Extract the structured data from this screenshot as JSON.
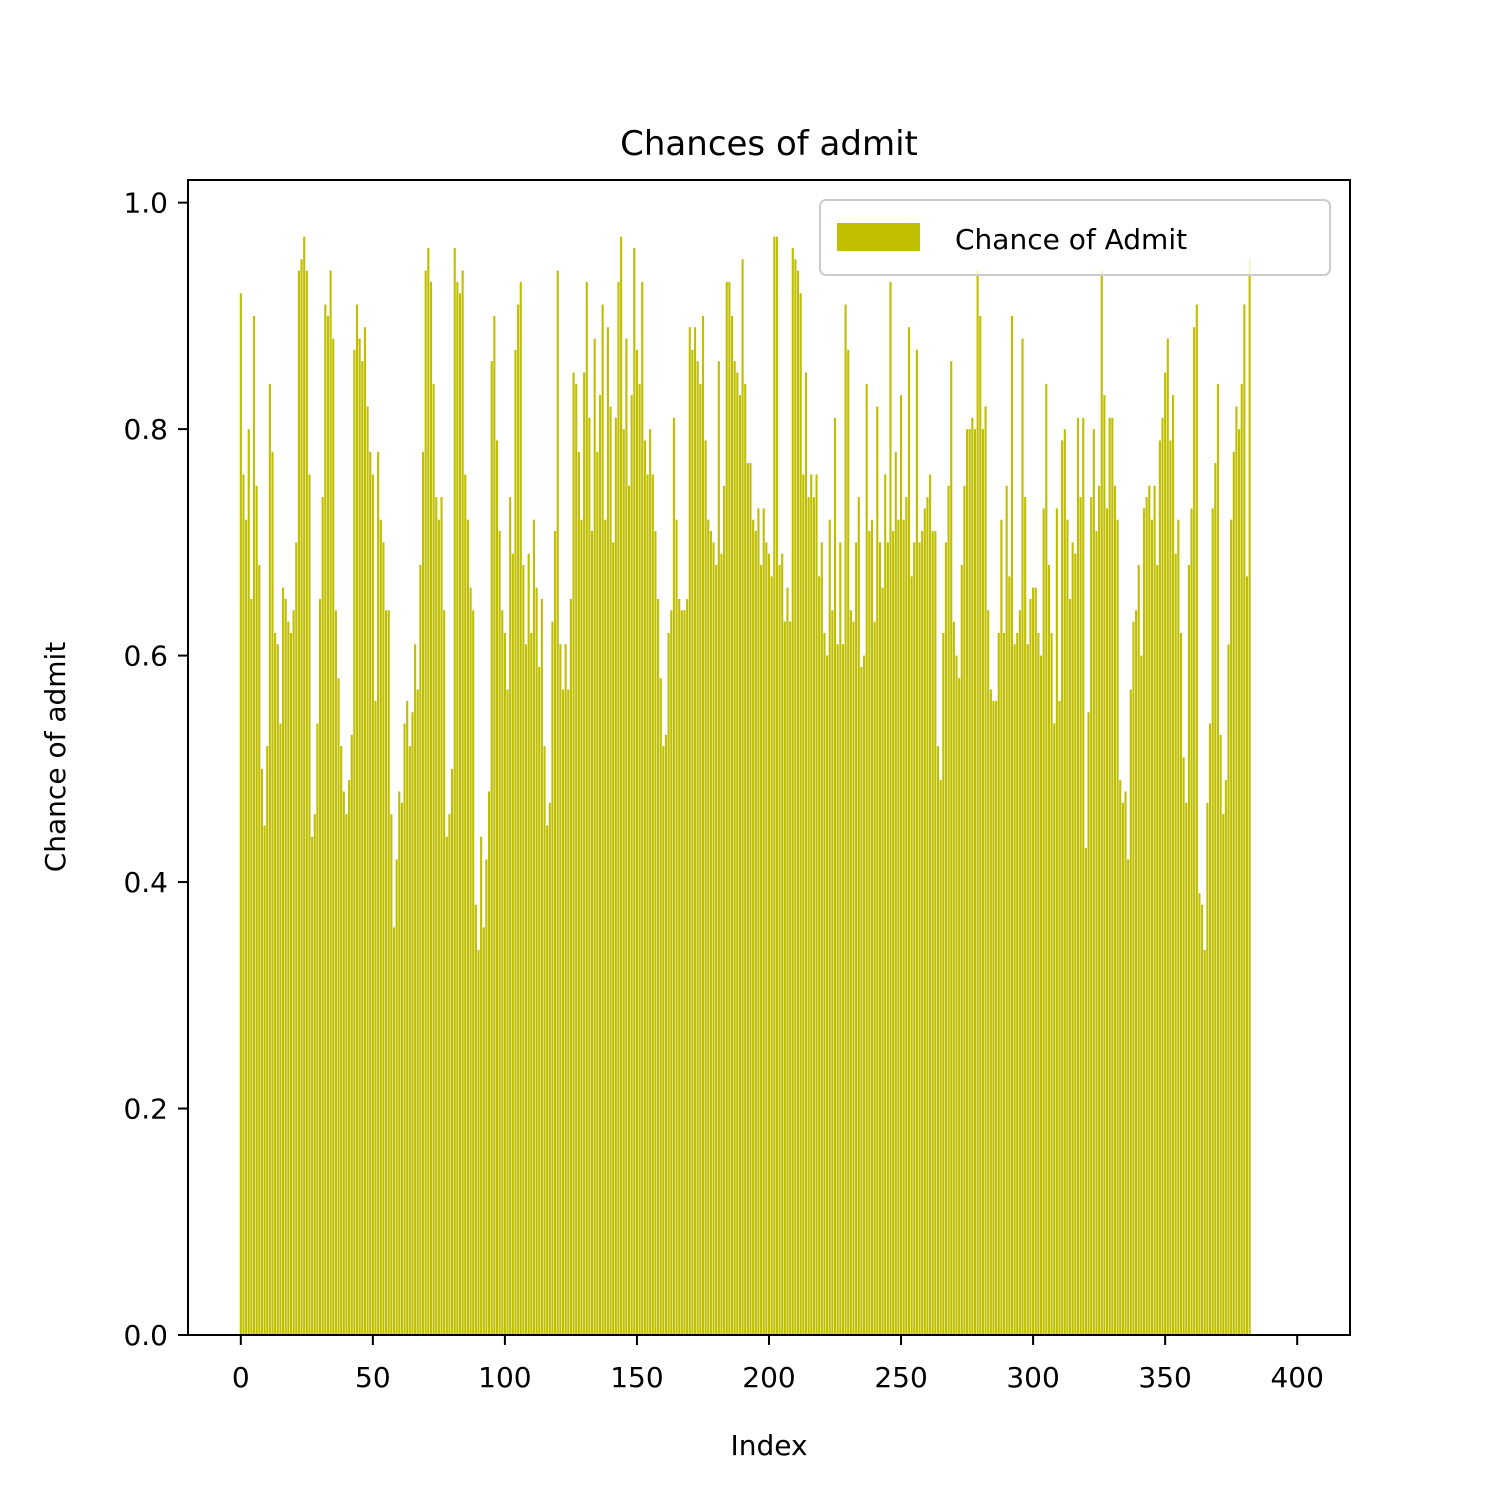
{
  "chart_data": {
    "type": "bar",
    "title": "Chances of admit",
    "xlabel": "Index",
    "ylabel": "Chance of admit",
    "xlim": [
      -20,
      420
    ],
    "ylim": [
      0,
      1.02
    ],
    "xticks": [
      0,
      50,
      100,
      150,
      200,
      250,
      300,
      350,
      400
    ],
    "xtick_labels": [
      "0",
      "50",
      "100",
      "150",
      "200",
      "250",
      "300",
      "350",
      "400"
    ],
    "yticks": [
      0.0,
      0.2,
      0.4,
      0.6,
      0.8,
      1.0
    ],
    "ytick_labels": [
      "0.0",
      "0.2",
      "0.4",
      "0.6",
      "0.8",
      "1.0"
    ],
    "grid": false,
    "legend_position": "top-right",
    "series": [
      {
        "name": "Chance of Admit",
        "color": "#bfbf00",
        "x_start": 0,
        "values": [
          0.92,
          0.76,
          0.72,
          0.8,
          0.65,
          0.9,
          0.75,
          0.68,
          0.5,
          0.45,
          0.52,
          0.84,
          0.78,
          0.62,
          0.61,
          0.54,
          0.66,
          0.65,
          0.63,
          0.62,
          0.64,
          0.7,
          0.94,
          0.95,
          0.97,
          0.94,
          0.76,
          0.44,
          0.46,
          0.54,
          0.65,
          0.74,
          0.91,
          0.9,
          0.94,
          0.88,
          0.64,
          0.58,
          0.52,
          0.48,
          0.46,
          0.49,
          0.53,
          0.87,
          0.91,
          0.88,
          0.86,
          0.89,
          0.82,
          0.78,
          0.76,
          0.56,
          0.78,
          0.72,
          0.7,
          0.64,
          0.64,
          0.46,
          0.36,
          0.42,
          0.48,
          0.47,
          0.54,
          0.56,
          0.52,
          0.55,
          0.61,
          0.57,
          0.68,
          0.78,
          0.94,
          0.96,
          0.93,
          0.84,
          0.74,
          0.72,
          0.74,
          0.64,
          0.44,
          0.46,
          0.5,
          0.96,
          0.93,
          0.92,
          0.94,
          0.76,
          0.72,
          0.66,
          0.64,
          0.38,
          0.34,
          0.44,
          0.36,
          0.42,
          0.48,
          0.86,
          0.9,
          0.79,
          0.71,
          0.64,
          0.62,
          0.57,
          0.74,
          0.69,
          0.87,
          0.91,
          0.93,
          0.68,
          0.61,
          0.69,
          0.62,
          0.72,
          0.66,
          0.59,
          0.65,
          0.52,
          0.45,
          0.47,
          0.63,
          0.71,
          0.94,
          0.61,
          0.57,
          0.61,
          0.57,
          0.65,
          0.85,
          0.84,
          0.78,
          0.72,
          0.85,
          0.93,
          0.81,
          0.71,
          0.88,
          0.78,
          0.83,
          0.91,
          0.72,
          0.89,
          0.82,
          0.7,
          0.81,
          0.93,
          0.97,
          0.8,
          0.88,
          0.75,
          0.83,
          0.96,
          0.87,
          0.84,
          0.93,
          0.79,
          0.76,
          0.8,
          0.76,
          0.71,
          0.65,
          0.58,
          0.52,
          0.53,
          0.62,
          0.64,
          0.81,
          0.72,
          0.65,
          0.64,
          0.64,
          0.65,
          0.89,
          0.87,
          0.89,
          0.86,
          0.84,
          0.9,
          0.79,
          0.72,
          0.71,
          0.7,
          0.68,
          0.86,
          0.69,
          0.75,
          0.93,
          0.93,
          0.9,
          0.86,
          0.85,
          0.83,
          0.95,
          0.84,
          0.77,
          0.77,
          0.72,
          0.71,
          0.73,
          0.68,
          0.73,
          0.7,
          0.69,
          0.67,
          0.97,
          0.97,
          0.68,
          0.69,
          0.63,
          0.66,
          0.63,
          0.96,
          0.95,
          0.94,
          0.92,
          0.76,
          0.85,
          0.74,
          0.76,
          0.74,
          0.76,
          0.67,
          0.7,
          0.62,
          0.6,
          0.72,
          0.64,
          0.81,
          0.61,
          0.7,
          0.61,
          0.91,
          0.87,
          0.64,
          0.63,
          0.7,
          0.74,
          0.59,
          0.6,
          0.84,
          0.71,
          0.72,
          0.63,
          0.82,
          0.7,
          0.66,
          0.76,
          0.7,
          0.93,
          0.71,
          0.78,
          0.72,
          0.83,
          0.72,
          0.74,
          0.89,
          0.67,
          0.7,
          0.87,
          0.7,
          0.71,
          0.73,
          0.74,
          0.76,
          0.71,
          0.71,
          0.52,
          0.49,
          0.62,
          0.7,
          0.75,
          0.86,
          0.63,
          0.6,
          0.58,
          0.68,
          0.75,
          0.8,
          0.8,
          0.81,
          0.8,
          0.94,
          0.9,
          0.8,
          0.82,
          0.64,
          0.57,
          0.56,
          0.56,
          0.62,
          0.72,
          0.62,
          0.75,
          0.67,
          0.9,
          0.61,
          0.62,
          0.64,
          0.88,
          0.74,
          0.61,
          0.65,
          0.66,
          0.66,
          0.62,
          0.6,
          0.73,
          0.84,
          0.68,
          0.62,
          0.54,
          0.73,
          0.56,
          0.79,
          0.8,
          0.72,
          0.65,
          0.7,
          0.69,
          0.81,
          0.74,
          0.81,
          0.43,
          0.55,
          0.74,
          0.8,
          0.71,
          0.75,
          0.94,
          0.83,
          0.73,
          0.81,
          0.81,
          0.75,
          0.72,
          0.49,
          0.47,
          0.48,
          0.42,
          0.57,
          0.63,
          0.64,
          0.68,
          0.6,
          0.73,
          0.74,
          0.75,
          0.72,
          0.75,
          0.68,
          0.79,
          0.81,
          0.85,
          0.88,
          0.79,
          0.83,
          0.69,
          0.72,
          0.62,
          0.51,
          0.47,
          0.68,
          0.73,
          0.89,
          0.91,
          0.39,
          0.38,
          0.34,
          0.47,
          0.54,
          0.73,
          0.77,
          0.84,
          0.53,
          0.46,
          0.49,
          0.61,
          0.72,
          0.78,
          0.82,
          0.8,
          0.84,
          0.91,
          0.67,
          0.95
        ]
      }
    ]
  }
}
